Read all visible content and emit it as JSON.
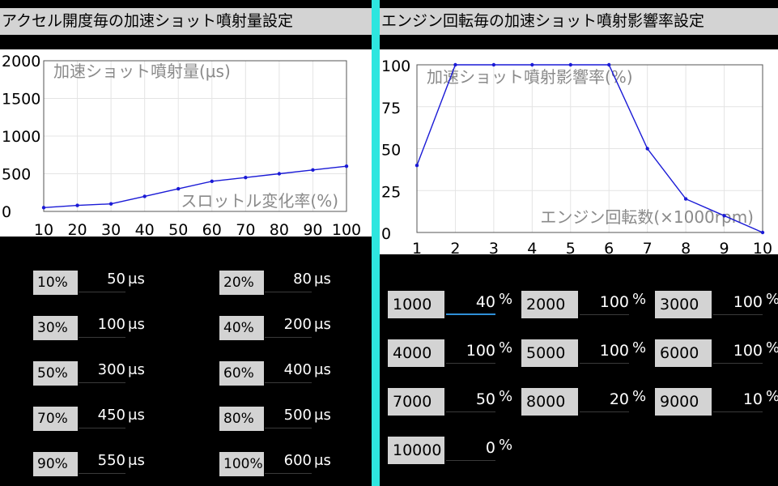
{
  "left": {
    "title": "アクセル開度毎の加速ショット噴射量設定",
    "rows": [
      {
        "label": "10%",
        "value": "50",
        "unit": "μs"
      },
      {
        "label": "20%",
        "value": "80",
        "unit": "μs"
      },
      {
        "label": "30%",
        "value": "100",
        "unit": "μs"
      },
      {
        "label": "40%",
        "value": "200",
        "unit": "μs"
      },
      {
        "label": "50%",
        "value": "300",
        "unit": "μs"
      },
      {
        "label": "60%",
        "value": "400",
        "unit": "μs"
      },
      {
        "label": "70%",
        "value": "450",
        "unit": "μs"
      },
      {
        "label": "80%",
        "value": "500",
        "unit": "μs"
      },
      {
        "label": "90%",
        "value": "550",
        "unit": "μs"
      },
      {
        "label": "100%",
        "value": "600",
        "unit": "μs"
      }
    ]
  },
  "right": {
    "title": "エンジン回転毎の加速ショット噴射影響率設定",
    "rows": [
      {
        "label": "1000",
        "value": "40",
        "unit": "%"
      },
      {
        "label": "2000",
        "value": "100",
        "unit": "%"
      },
      {
        "label": "3000",
        "value": "100",
        "unit": "%"
      },
      {
        "label": "4000",
        "value": "100",
        "unit": "%"
      },
      {
        "label": "5000",
        "value": "100",
        "unit": "%"
      },
      {
        "label": "6000",
        "value": "100",
        "unit": "%"
      },
      {
        "label": "7000",
        "value": "50",
        "unit": "%"
      },
      {
        "label": "8000",
        "value": "20",
        "unit": "%"
      },
      {
        "label": "9000",
        "value": "10",
        "unit": "%"
      },
      {
        "label": "10000",
        "value": "0",
        "unit": "%"
      }
    ]
  },
  "colors": {
    "line": "#1a1ad6",
    "divider": "#2ee6df",
    "header": "#d3d3d3",
    "focus": "#2f8fd8"
  },
  "chart_data": [
    {
      "type": "line",
      "title": "加速ショット噴射量(μs)",
      "xlabel": "スロットル変化率(%)",
      "ylabel": "",
      "x": [
        10,
        20,
        30,
        40,
        50,
        60,
        70,
        80,
        90,
        100
      ],
      "series": [
        {
          "values": [
            50,
            80,
            100,
            200,
            300,
            400,
            450,
            500,
            550,
            600
          ]
        }
      ],
      "xlim": [
        10,
        100
      ],
      "ylim": [
        0,
        2000
      ],
      "x_ticks": [
        "10",
        "20",
        "30",
        "40",
        "50",
        "60",
        "70",
        "80",
        "90",
        "100"
      ],
      "y_ticks": [
        "0",
        "500",
        "1000",
        "1500",
        "2000"
      ],
      "grid": true
    },
    {
      "type": "line",
      "title": "加速ショット噴射影響率(%)",
      "xlabel": "エンジン回転数(×1000rpm)",
      "ylabel": "",
      "x": [
        1,
        2,
        3,
        4,
        5,
        6,
        7,
        8,
        9,
        10
      ],
      "series": [
        {
          "values": [
            40,
            100,
            100,
            100,
            100,
            100,
            50,
            20,
            10,
            0
          ]
        }
      ],
      "xlim": [
        1,
        10
      ],
      "ylim": [
        0,
        100
      ],
      "x_ticks": [
        "1",
        "2",
        "3",
        "4",
        "5",
        "6",
        "7",
        "8",
        "9",
        "10"
      ],
      "y_ticks": [
        "0",
        "25",
        "50",
        "75",
        "100"
      ],
      "grid": true
    }
  ]
}
